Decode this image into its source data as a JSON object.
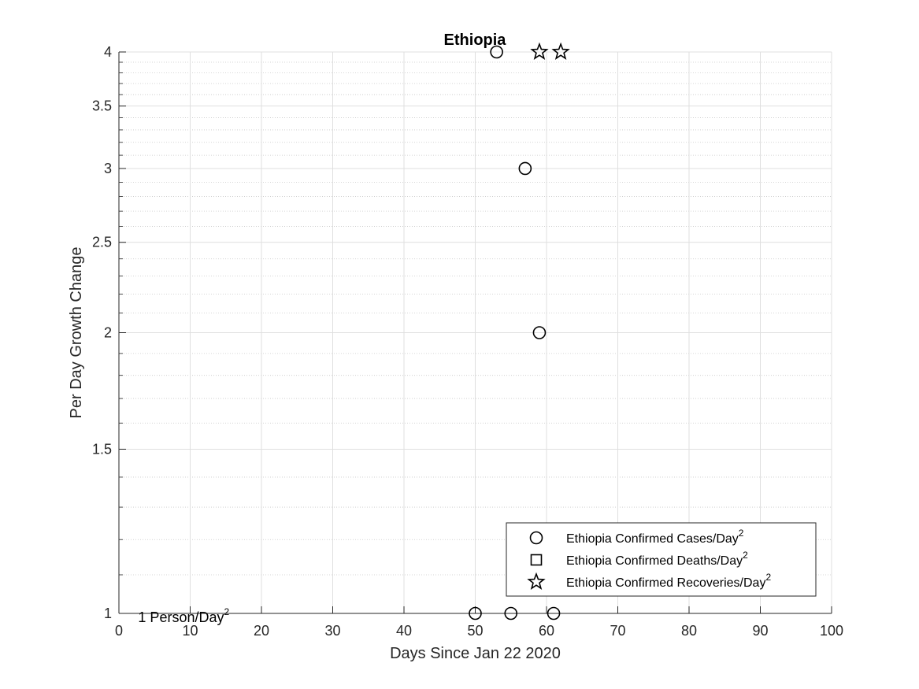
{
  "chart_data": {
    "type": "scatter",
    "title": "Ethiopia",
    "xlabel": "Days Since Jan 22 2020",
    "ylabel": "Per Day Growth Change",
    "xlim": [
      0,
      100
    ],
    "ylim": [
      1,
      4
    ],
    "yscale": "log",
    "grid": true,
    "minor_grid": true,
    "x_ticks": [
      0,
      10,
      20,
      30,
      40,
      50,
      60,
      70,
      80,
      90,
      100
    ],
    "y_ticks": [
      1,
      1.5,
      2,
      2.5,
      3,
      3.5,
      4
    ],
    "y_tick_labels": [
      "1",
      "1.5",
      "2",
      "2.5",
      "3",
      "3.5",
      "4"
    ],
    "legend_position": "bottom-right",
    "series": [
      {
        "name": "Ethiopia Confirmed Cases/Day",
        "name_sup": "2",
        "marker": "circle",
        "points": [
          [
            50,
            1
          ],
          [
            53,
            4
          ],
          [
            55,
            1
          ],
          [
            57,
            3
          ],
          [
            59,
            2
          ],
          [
            61,
            1
          ]
        ]
      },
      {
        "name": "Ethiopia Confirmed Deaths/Day",
        "name_sup": "2",
        "marker": "square",
        "points": []
      },
      {
        "name": "Ethiopia Confirmed Recoveries/Day",
        "name_sup": "2",
        "marker": "star",
        "points": [
          [
            59,
            4
          ],
          [
            62,
            4
          ]
        ]
      }
    ],
    "annotations": [
      {
        "text": "1 Person/Day",
        "sup": "2",
        "x": 2.7,
        "y": 1
      }
    ],
    "colors": {
      "marker": "#000000",
      "axis": "#262626",
      "grid": "#dfdfdf",
      "minor_grid": "#c8c8c8"
    }
  }
}
